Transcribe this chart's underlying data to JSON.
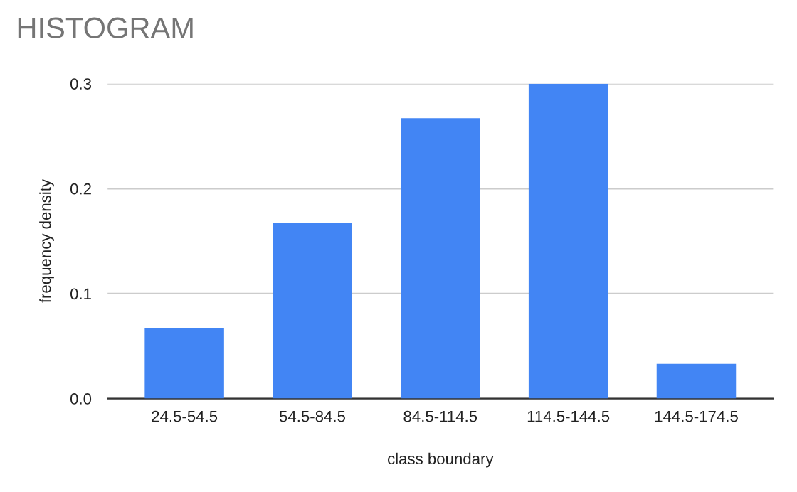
{
  "chart_data": {
    "type": "bar",
    "title": "HISTOGRAM",
    "xlabel": "class boundary",
    "ylabel": "frequency density",
    "categories": [
      "24.5-54.5",
      "54.5-84.5",
      "84.5-114.5",
      "114.5-144.5",
      "144.5-174.5"
    ],
    "values": [
      0.067,
      0.167,
      0.267,
      0.3,
      0.033
    ],
    "color": "#4285f4",
    "ylim": [
      0,
      0.3
    ],
    "yticks": [
      {
        "value": 0,
        "label": "0.0"
      },
      0.1,
      0.2,
      0.3
    ],
    "grid": "y"
  }
}
